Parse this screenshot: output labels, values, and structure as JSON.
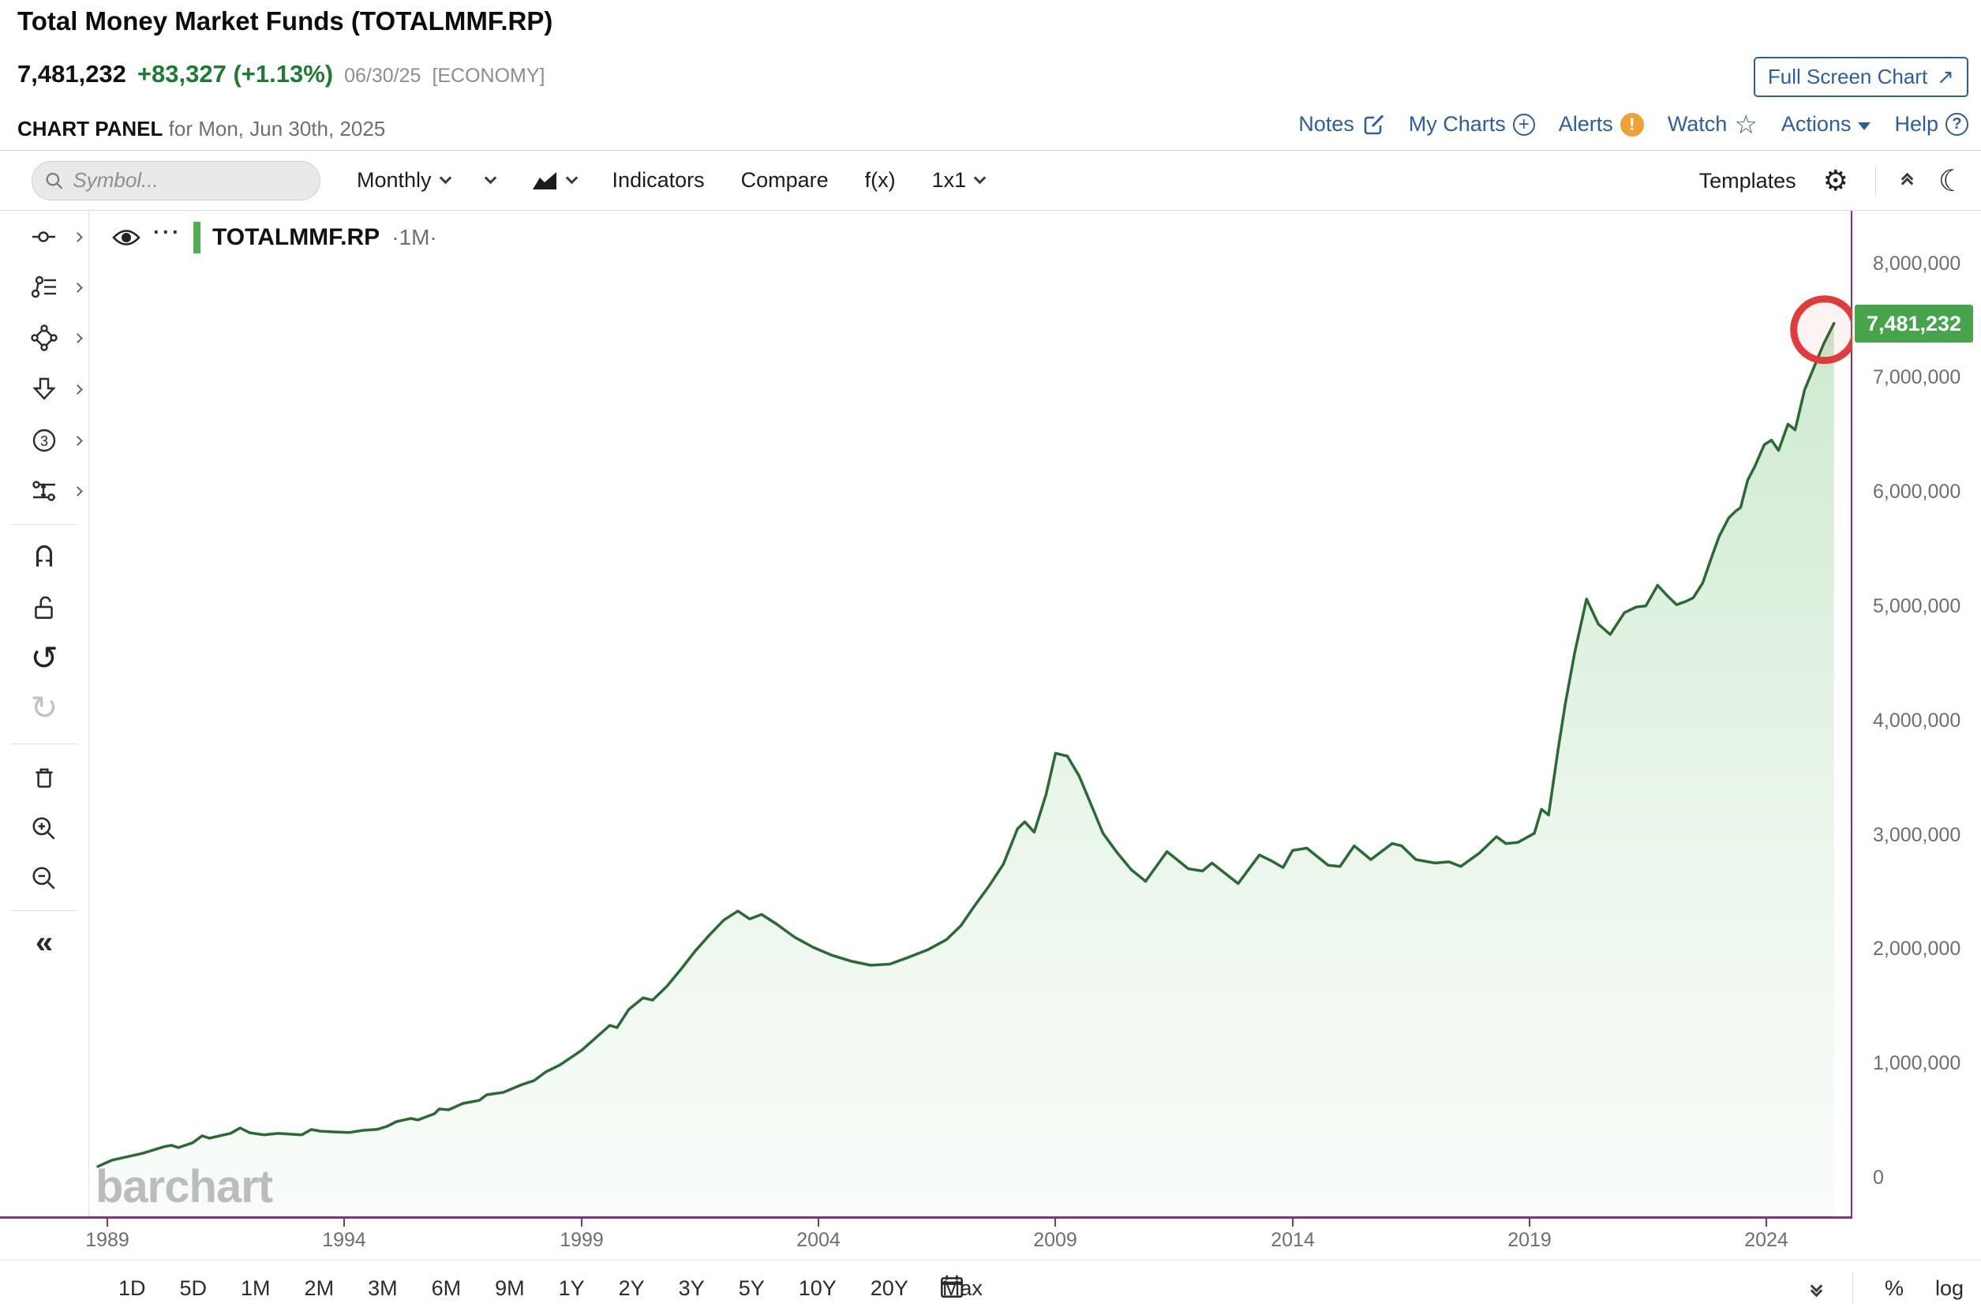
{
  "colors": {
    "accent_blue": "#2b5f9e",
    "change_green": "#1e7b33",
    "line_green": "#2a6a33",
    "fill_green": "#4caf50",
    "badge_green": "#46a44b",
    "axis_purple": "#872f85",
    "annotation_red": "#e23b3b",
    "alert_orange": "#eea236"
  },
  "header": {
    "title": "Total Money Market Funds (TOTALMMF.RP)",
    "last_price": "7,481,232",
    "change": "+83,327 (+1.13%)",
    "date": "06/30/25",
    "tag": "[ECONOMY]",
    "fullscreen_label": "Full Screen Chart",
    "panel_label": "CHART PANEL",
    "panel_date": "for Mon, Jun 30th, 2025",
    "links": {
      "notes": "Notes",
      "my_charts": "My Charts",
      "alerts": "Alerts",
      "watch": "Watch",
      "actions": "Actions",
      "help": "Help"
    }
  },
  "toolbar": {
    "symbol_placeholder": "Symbol...",
    "frequency": "Monthly",
    "indicators": "Indicators",
    "compare": "Compare",
    "fx": "f(x)",
    "grid_layout": "1x1",
    "templates": "Templates"
  },
  "legend": {
    "symbol": "TOTALMMF.RP",
    "frequency_display": "·1M·",
    "more_icon": "···"
  },
  "watermark": "barchart",
  "badge_value": "7,481,232",
  "footer": {
    "ranges": [
      "1D",
      "5D",
      "1M",
      "2M",
      "3M",
      "6M",
      "9M",
      "1Y",
      "2Y",
      "3Y",
      "5Y",
      "10Y",
      "20Y",
      "Max"
    ],
    "percent": "%",
    "log": "log"
  },
  "icons": {
    "fullscreen_arrow": "↗",
    "collapse_left": "«",
    "gear": "⚙",
    "moon": "☾",
    "star": "☆",
    "undo": "↺",
    "redo": "↻",
    "alert": "!",
    "help_q": "?",
    "plus": "+"
  },
  "chart_data": {
    "type": "area",
    "title": "Total Money Market Funds (TOTALMMF.RP)",
    "symbol": "TOTALMMF.RP",
    "frequency": "1M",
    "x_ticks": [
      1989,
      1994,
      1999,
      2004,
      2009,
      2014,
      2019,
      2024
    ],
    "y_ticks": [
      8000000,
      7000000,
      6000000,
      5000000,
      4000000,
      3000000,
      2000000,
      1000000,
      0
    ],
    "xlim": [
      1988.6,
      2025.8
    ],
    "ylim": [
      -330000,
      8470000
    ],
    "grid": false,
    "y_axis_side": "right",
    "legend_position": "top-left",
    "last_point": {
      "date": "06/30/25",
      "value": 7481232
    },
    "annotations": [
      {
        "type": "circle",
        "at": "last_point",
        "color": "#e23b3b"
      }
    ],
    "series": [
      {
        "name": "TOTALMMF.RP",
        "points": [
          [
            1988.8,
            105000
          ],
          [
            1989.1,
            160000
          ],
          [
            1989.75,
            220000
          ],
          [
            1990.2,
            278000
          ],
          [
            1990.35,
            290000
          ],
          [
            1990.5,
            270000
          ],
          [
            1990.8,
            312000
          ],
          [
            1991.0,
            373000
          ],
          [
            1991.15,
            352000
          ],
          [
            1991.6,
            395000
          ],
          [
            1991.8,
            442000
          ],
          [
            1992.0,
            400000
          ],
          [
            1992.3,
            382000
          ],
          [
            1992.6,
            394000
          ],
          [
            1993.1,
            381000
          ],
          [
            1993.3,
            428000
          ],
          [
            1993.5,
            414000
          ],
          [
            1993.8,
            407000
          ],
          [
            1994.1,
            402000
          ],
          [
            1994.4,
            421000
          ],
          [
            1994.7,
            430000
          ],
          [
            1994.9,
            456000
          ],
          [
            1995.1,
            497000
          ],
          [
            1995.4,
            525000
          ],
          [
            1995.55,
            512000
          ],
          [
            1995.9,
            566000
          ],
          [
            1996.0,
            608000
          ],
          [
            1996.2,
            601000
          ],
          [
            1996.5,
            656000
          ],
          [
            1996.85,
            684000
          ],
          [
            1997.0,
            732000
          ],
          [
            1997.35,
            753000
          ],
          [
            1997.75,
            822000
          ],
          [
            1998.0,
            856000
          ],
          [
            1998.25,
            932000
          ],
          [
            1998.55,
            994000
          ],
          [
            1999.0,
            1120000
          ],
          [
            1999.3,
            1230000
          ],
          [
            1999.6,
            1340000
          ],
          [
            1999.75,
            1320000
          ],
          [
            2000.0,
            1480000
          ],
          [
            2000.3,
            1580000
          ],
          [
            2000.5,
            1560000
          ],
          [
            2000.8,
            1680000
          ],
          [
            2001.1,
            1830000
          ],
          [
            2001.4,
            1990000
          ],
          [
            2001.7,
            2130000
          ],
          [
            2002.0,
            2260000
          ],
          [
            2002.3,
            2340000
          ],
          [
            2002.55,
            2270000
          ],
          [
            2002.8,
            2310000
          ],
          [
            2003.1,
            2230000
          ],
          [
            2003.5,
            2110000
          ],
          [
            2003.9,
            2020000
          ],
          [
            2004.3,
            1950000
          ],
          [
            2004.7,
            1900000
          ],
          [
            2005.1,
            1865000
          ],
          [
            2005.5,
            1875000
          ],
          [
            2005.9,
            1935000
          ],
          [
            2006.3,
            2000000
          ],
          [
            2006.7,
            2090000
          ],
          [
            2007.0,
            2210000
          ],
          [
            2007.3,
            2390000
          ],
          [
            2007.6,
            2560000
          ],
          [
            2007.9,
            2750000
          ],
          [
            2008.2,
            3060000
          ],
          [
            2008.35,
            3120000
          ],
          [
            2008.55,
            3030000
          ],
          [
            2008.8,
            3360000
          ],
          [
            2009.0,
            3720000
          ],
          [
            2009.25,
            3695000
          ],
          [
            2009.5,
            3520000
          ],
          [
            2009.75,
            3270000
          ],
          [
            2010.0,
            3020000
          ],
          [
            2010.3,
            2850000
          ],
          [
            2010.6,
            2700000
          ],
          [
            2010.9,
            2600000
          ],
          [
            2011.35,
            2860000
          ],
          [
            2011.8,
            2710000
          ],
          [
            2012.1,
            2690000
          ],
          [
            2012.3,
            2760000
          ],
          [
            2012.85,
            2580000
          ],
          [
            2013.3,
            2830000
          ],
          [
            2013.55,
            2780000
          ],
          [
            2013.8,
            2720000
          ],
          [
            2014.0,
            2870000
          ],
          [
            2014.3,
            2890000
          ],
          [
            2014.75,
            2740000
          ],
          [
            2015.0,
            2730000
          ],
          [
            2015.3,
            2910000
          ],
          [
            2015.65,
            2790000
          ],
          [
            2016.1,
            2930000
          ],
          [
            2016.3,
            2910000
          ],
          [
            2016.6,
            2790000
          ],
          [
            2017.0,
            2760000
          ],
          [
            2017.3,
            2770000
          ],
          [
            2017.55,
            2730000
          ],
          [
            2017.95,
            2850000
          ],
          [
            2018.3,
            2990000
          ],
          [
            2018.5,
            2930000
          ],
          [
            2018.75,
            2940000
          ],
          [
            2019.1,
            3020000
          ],
          [
            2019.25,
            3230000
          ],
          [
            2019.4,
            3180000
          ],
          [
            2019.6,
            3750000
          ],
          [
            2019.75,
            4150000
          ],
          [
            2019.95,
            4600000
          ],
          [
            2020.2,
            5070000
          ],
          [
            2020.45,
            4850000
          ],
          [
            2020.7,
            4760000
          ],
          [
            2021.0,
            4950000
          ],
          [
            2021.25,
            5000000
          ],
          [
            2021.45,
            5010000
          ],
          [
            2021.7,
            5190000
          ],
          [
            2021.9,
            5100000
          ],
          [
            2022.1,
            5020000
          ],
          [
            2022.3,
            5050000
          ],
          [
            2022.45,
            5080000
          ],
          [
            2022.65,
            5210000
          ],
          [
            2022.85,
            5450000
          ],
          [
            2023.0,
            5620000
          ],
          [
            2023.2,
            5780000
          ],
          [
            2023.35,
            5840000
          ],
          [
            2023.45,
            5870000
          ],
          [
            2023.6,
            6110000
          ],
          [
            2023.75,
            6230000
          ],
          [
            2023.95,
            6420000
          ],
          [
            2024.1,
            6460000
          ],
          [
            2024.25,
            6370000
          ],
          [
            2024.45,
            6600000
          ],
          [
            2024.6,
            6550000
          ],
          [
            2024.8,
            6900000
          ],
          [
            2025.0,
            7100000
          ],
          [
            2025.2,
            7300000
          ],
          [
            2025.42,
            7481232
          ]
        ]
      }
    ]
  }
}
